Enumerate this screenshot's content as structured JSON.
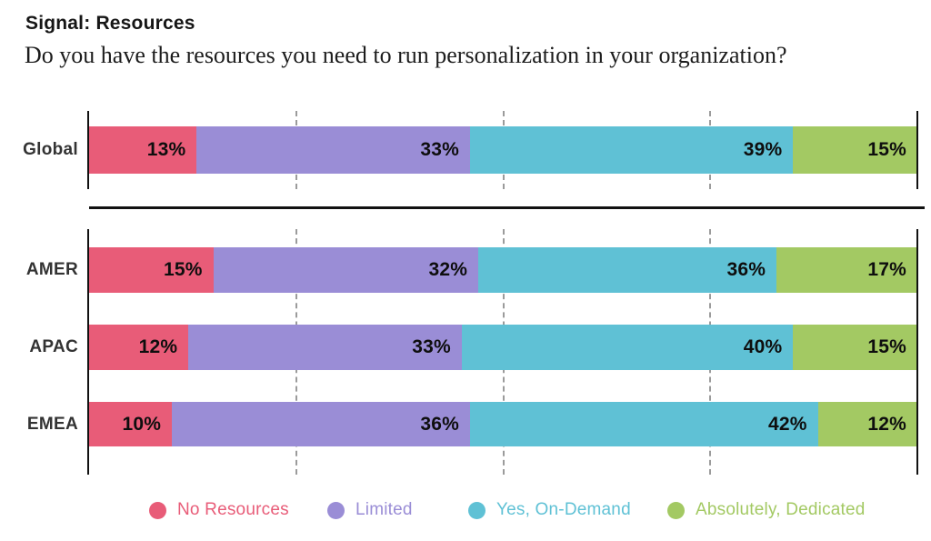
{
  "header": {
    "title": "Signal: Resources",
    "subtitle": "Do you have the resources you need to run personalization in your organization?"
  },
  "chart_data": {
    "type": "bar",
    "orientation": "horizontal",
    "stacked": true,
    "unit": "%",
    "title": "Signal: Resources",
    "subtitle": "Do you have the resources you need to run personalization in your organization?",
    "xlim": [
      0,
      100
    ],
    "gridlines_pct": [
      25,
      50,
      75
    ],
    "grid": true,
    "legend_position": "bottom",
    "categories": [
      "Global",
      "AMER",
      "APAC",
      "EMEA"
    ],
    "groups": [
      {
        "rows": [
          "Global"
        ]
      },
      {
        "rows": [
          "AMER",
          "APAC",
          "EMEA"
        ]
      }
    ],
    "series": [
      {
        "name": "No Resources",
        "color": "#E85C78",
        "values": {
          "Global": 13,
          "AMER": 15,
          "APAC": 12,
          "EMEA": 10
        }
      },
      {
        "name": "Limited",
        "color": "#9A8DD6",
        "values": {
          "Global": 33,
          "AMER": 32,
          "APAC": 33,
          "EMEA": 36
        }
      },
      {
        "name": "Yes, On-Demand",
        "color": "#5FC1D5",
        "values": {
          "Global": 39,
          "AMER": 36,
          "APAC": 40,
          "EMEA": 42
        }
      },
      {
        "name": "Absolutely, Dedicated",
        "color": "#A3C963",
        "values": {
          "Global": 15,
          "AMER": 17,
          "APAC": 15,
          "EMEA": 12
        }
      }
    ],
    "colors": {
      "axis": "#111111",
      "gridline": "#9B9B9B",
      "value_label": "#0E0E0E",
      "row_label": "#333333"
    }
  },
  "legend": {
    "items": [
      {
        "label": "No Resources",
        "color": "#E85C78"
      },
      {
        "label": "Limited",
        "color": "#9A8DD6"
      },
      {
        "label": "Yes, On-Demand",
        "color": "#5FC1D5"
      },
      {
        "label": "Absolutely, Dedicated",
        "color": "#A3C963"
      }
    ]
  }
}
